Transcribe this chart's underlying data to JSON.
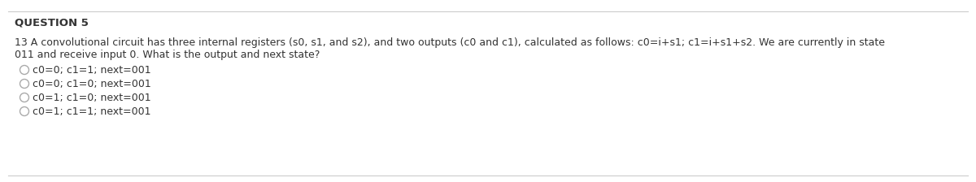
{
  "title": "QUESTION 5",
  "body_line1": "13 A convolutional circuit has three internal registers (s0, s1, and s2), and two outputs (c0 and c1), calculated as follows: c0=i+s1; c1=i+s1+s2. We are currently in state",
  "body_line2": "011 and receive input 0. What is the output and next state?",
  "options": [
    "c0=0; c1=1; next=001",
    "c0=0; c1=0; next=001",
    "c0=1; c1=0; next=001",
    "c0=1; c1=1; next=001"
  ],
  "bg_color": "#ffffff",
  "title_color": "#333333",
  "body_color": "#333333",
  "option_color": "#333333",
  "line_color": "#cccccc",
  "title_fontsize": 9.5,
  "body_fontsize": 9.0,
  "option_fontsize": 9.0,
  "circle_color": "#aaaaaa"
}
